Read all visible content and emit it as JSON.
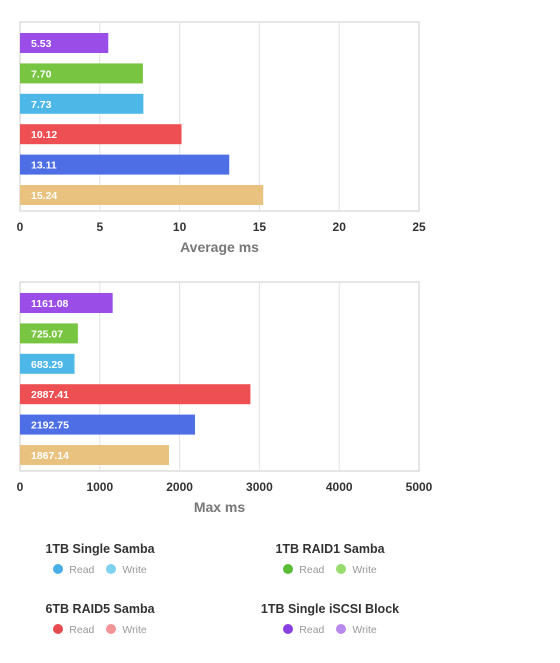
{
  "chart_data": [
    {
      "type": "bar",
      "orientation": "horizontal",
      "xlabel": "Average ms",
      "xlim": [
        0,
        25
      ],
      "xticks": [
        "0",
        "5",
        "10",
        "15",
        "20",
        "25"
      ],
      "grid": true,
      "bars": [
        {
          "label": "5.53",
          "value": 5.53,
          "color": "#9b4de8"
        },
        {
          "label": "7.70",
          "value": 7.7,
          "color": "#77c540"
        },
        {
          "label": "7.73",
          "value": 7.73,
          "color": "#4db8e8"
        },
        {
          "label": "10.12",
          "value": 10.12,
          "color": "#ee4f52"
        },
        {
          "label": "13.11",
          "value": 13.11,
          "color": "#4e6ee6"
        },
        {
          "label": "15.24",
          "value": 15.24,
          "color": "#eac27f"
        }
      ]
    },
    {
      "type": "bar",
      "orientation": "horizontal",
      "xlabel": "Max ms",
      "xlim": [
        0,
        5000
      ],
      "xticks": [
        "0",
        "1000",
        "2000",
        "3000",
        "4000",
        "5000"
      ],
      "grid": true,
      "bars": [
        {
          "label": "1161.08",
          "value": 1161.08,
          "color": "#9b4de8"
        },
        {
          "label": "725.07",
          "value": 725.07,
          "color": "#77c540"
        },
        {
          "label": "683.29",
          "value": 683.29,
          "color": "#4db8e8"
        },
        {
          "label": "2887.41",
          "value": 2887.41,
          "color": "#ee4f52"
        },
        {
          "label": "2192.75",
          "value": 2192.75,
          "color": "#4e6ee6"
        },
        {
          "label": "1867.14",
          "value": 1867.14,
          "color": "#eac27f"
        }
      ]
    }
  ],
  "legend": {
    "groups": [
      {
        "title": "1TB Single Samba",
        "items": [
          {
            "label": "Read",
            "color": "#4aaee6"
          },
          {
            "label": "Write",
            "color": "#7fd1f0"
          }
        ]
      },
      {
        "title": "1TB RAID1 Samba",
        "items": [
          {
            "label": "Read",
            "color": "#5cbc35"
          },
          {
            "label": "Write",
            "color": "#98dc6e"
          }
        ]
      },
      {
        "title": "6TB RAID5 Samba",
        "items": [
          {
            "label": "Read",
            "color": "#e84b4f"
          },
          {
            "label": "Write",
            "color": "#f29396"
          }
        ]
      },
      {
        "title": "1TB Single iSCSI Block",
        "items": [
          {
            "label": "Read",
            "color": "#8a3fe0"
          },
          {
            "label": "Write",
            "color": "#b88aee"
          }
        ]
      }
    ]
  }
}
